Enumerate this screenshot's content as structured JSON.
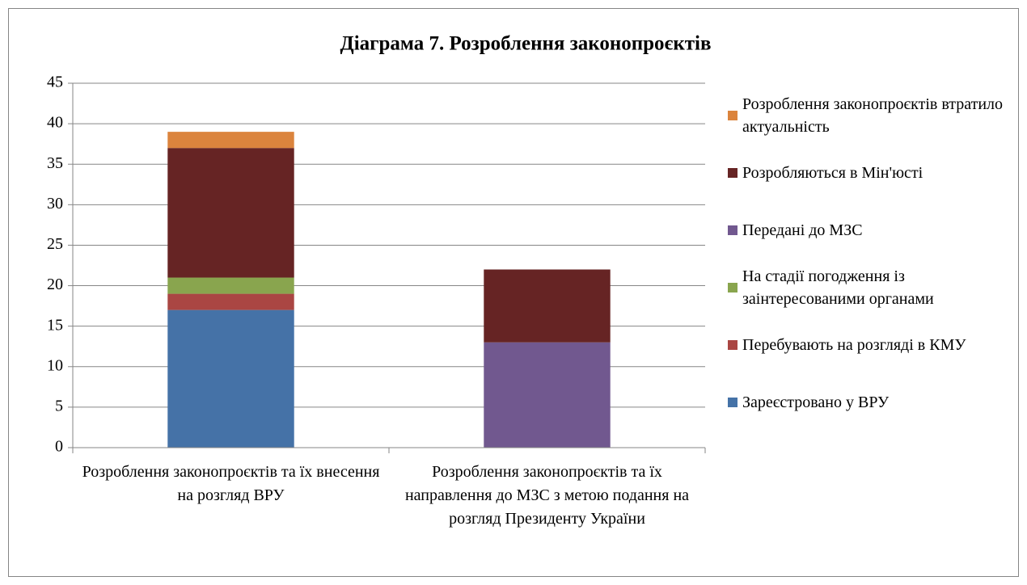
{
  "chart_data": {
    "type": "stacked_bar",
    "title": "Діаграма 7. Розроблення законопроєктів",
    "categories": [
      "Розроблення законопроєктів та їх внесення на розгляд ВРУ",
      "Розроблення законопроєктів та їх направлення до МЗС з метою подання на розгляд Президенту України"
    ],
    "series": [
      {
        "name": "Зареєстровано у ВРУ",
        "color": "#4572a7",
        "values": [
          17,
          0
        ]
      },
      {
        "name": "Перебувають на розгляді в КМУ",
        "color": "#aa4643",
        "values": [
          2,
          0
        ]
      },
      {
        "name": "На стадії погодження із заінтересованими органами",
        "color": "#89a54e",
        "values": [
          2,
          0
        ]
      },
      {
        "name": "Передані до МЗС",
        "color": "#71588f",
        "values": [
          0,
          13
        ]
      },
      {
        "name": "Розробляються в Мін'юсті",
        "color": "#662424",
        "values": [
          16,
          9
        ]
      },
      {
        "name": "Розроблення законопроєктів втратило актуальність",
        "color": "#db843d",
        "values": [
          2,
          0
        ]
      }
    ],
    "ylim": [
      0,
      45
    ],
    "yticks": [
      0,
      5,
      10,
      15,
      20,
      25,
      30,
      35,
      40,
      45
    ],
    "grid": true,
    "legend": "right"
  }
}
